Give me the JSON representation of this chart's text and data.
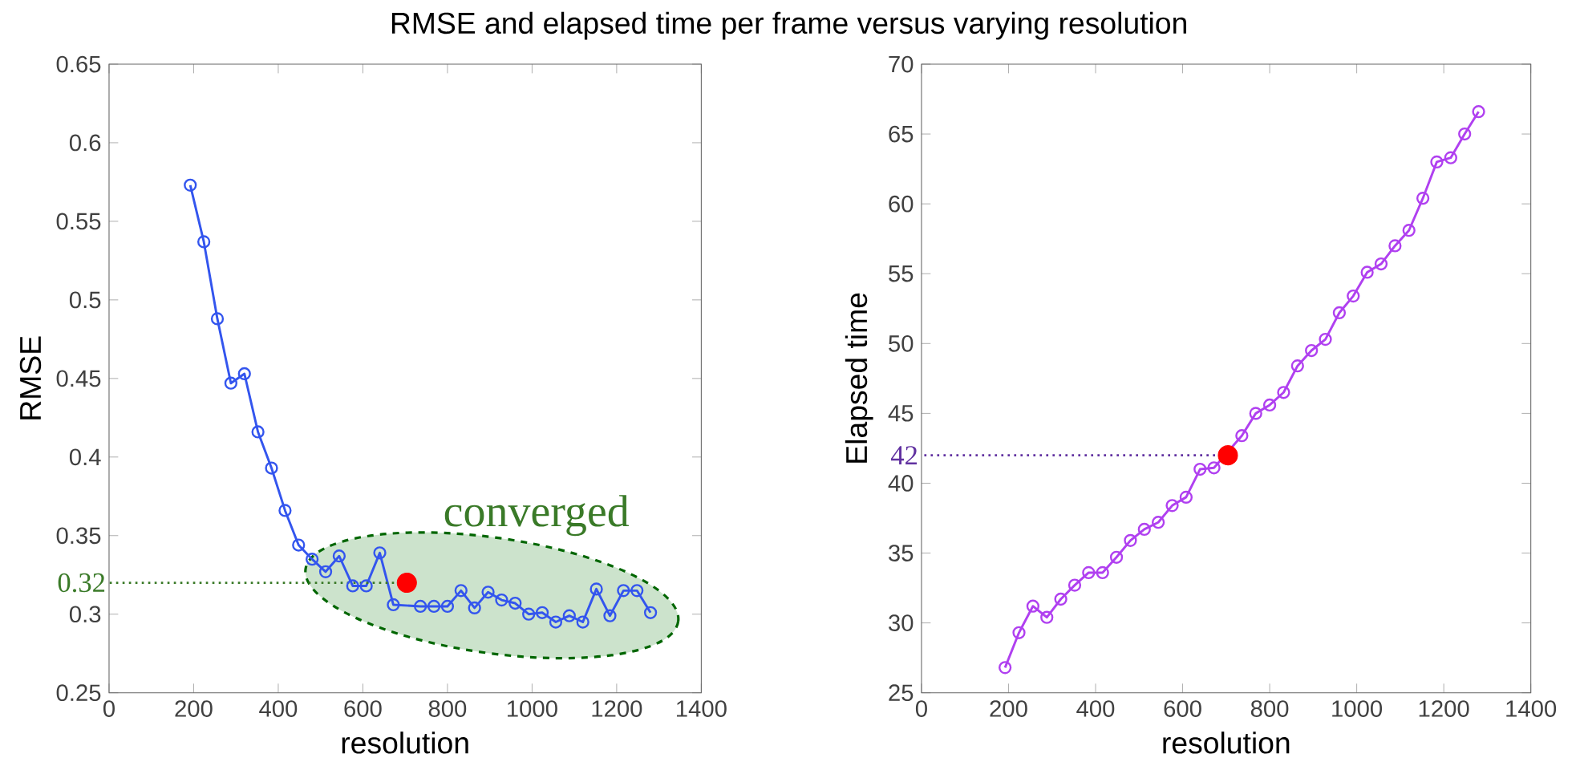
{
  "chart_data": [
    {
      "type": "line",
      "title": "RMSE and elapsed time per frame versus varying resolution",
      "xlabel": "resolution",
      "ylabel": "RMSE",
      "marker": "circle",
      "line_style": "solid",
      "x": [
        192,
        224,
        256,
        288,
        320,
        352,
        384,
        416,
        448,
        480,
        512,
        544,
        576,
        608,
        640,
        672,
        704,
        736,
        768,
        800,
        832,
        864,
        896,
        928,
        960,
        992,
        1024,
        1056,
        1088,
        1120,
        1152,
        1184,
        1216,
        1248,
        1280
      ],
      "series": [
        {
          "color": "#3355ee",
          "values": [
            0.573,
            0.537,
            0.488,
            0.447,
            0.453,
            0.416,
            0.393,
            0.366,
            0.344,
            0.335,
            0.327,
            0.337,
            0.318,
            0.318,
            0.339,
            0.306,
            null,
            0.305,
            0.305,
            0.305,
            0.315,
            0.304,
            0.314,
            0.309,
            0.307,
            0.3,
            0.301,
            0.295,
            0.299,
            0.295,
            0.316,
            0.299,
            0.315,
            0.315,
            0.301
          ]
        },
        {
          "type": "scatter",
          "color": "#ff0000",
          "x": [
            704
          ],
          "values": [
            0.32
          ]
        }
      ],
      "xlim": [
        0,
        1400
      ],
      "xticks": [
        0,
        200,
        400,
        600,
        800,
        1000,
        1200,
        1400
      ],
      "ylim": [
        0.25,
        0.65
      ],
      "yticks": [
        0.25,
        0.3,
        0.35,
        0.4,
        0.45,
        0.5,
        0.55,
        0.6,
        0.65
      ],
      "annotations": [
        {
          "text": "0.32",
          "x": 704,
          "y": 0.32
        },
        "converged"
      ]
    },
    {
      "type": "line",
      "xlabel": "resolution",
      "ylabel": "Elapsed time",
      "marker": "circle",
      "line_style": "solid",
      "x": [
        192,
        224,
        256,
        288,
        320,
        352,
        384,
        416,
        448,
        480,
        512,
        544,
        576,
        608,
        640,
        672,
        704,
        736,
        768,
        800,
        832,
        864,
        896,
        928,
        960,
        992,
        1024,
        1056,
        1088,
        1120,
        1152,
        1184,
        1216,
        1248,
        1280
      ],
      "series": [
        {
          "color": "#b040f0",
          "values": [
            26.8,
            29.3,
            31.2,
            30.4,
            31.7,
            32.7,
            33.6,
            33.6,
            34.7,
            35.9,
            36.7,
            37.2,
            38.4,
            39.0,
            41.0,
            41.1,
            null,
            43.4,
            45.0,
            45.6,
            46.5,
            48.4,
            49.5,
            50.3,
            52.2,
            53.4,
            55.1,
            55.7,
            57.0,
            58.1,
            60.4,
            63.0,
            63.3,
            65.0,
            66.6
          ]
        },
        {
          "type": "scatter",
          "color": "#ff0000",
          "x": [
            704
          ],
          "values": [
            42
          ]
        }
      ],
      "xlim": [
        0,
        1400
      ],
      "xticks": [
        0,
        200,
        400,
        600,
        800,
        1000,
        1200,
        1400
      ],
      "ylim": [
        25,
        70
      ],
      "yticks": [
        25,
        30,
        35,
        40,
        45,
        50,
        55,
        60,
        65,
        70
      ],
      "annotations": [
        {
          "text": "42",
          "x": 704,
          "y": 42
        }
      ]
    }
  ]
}
